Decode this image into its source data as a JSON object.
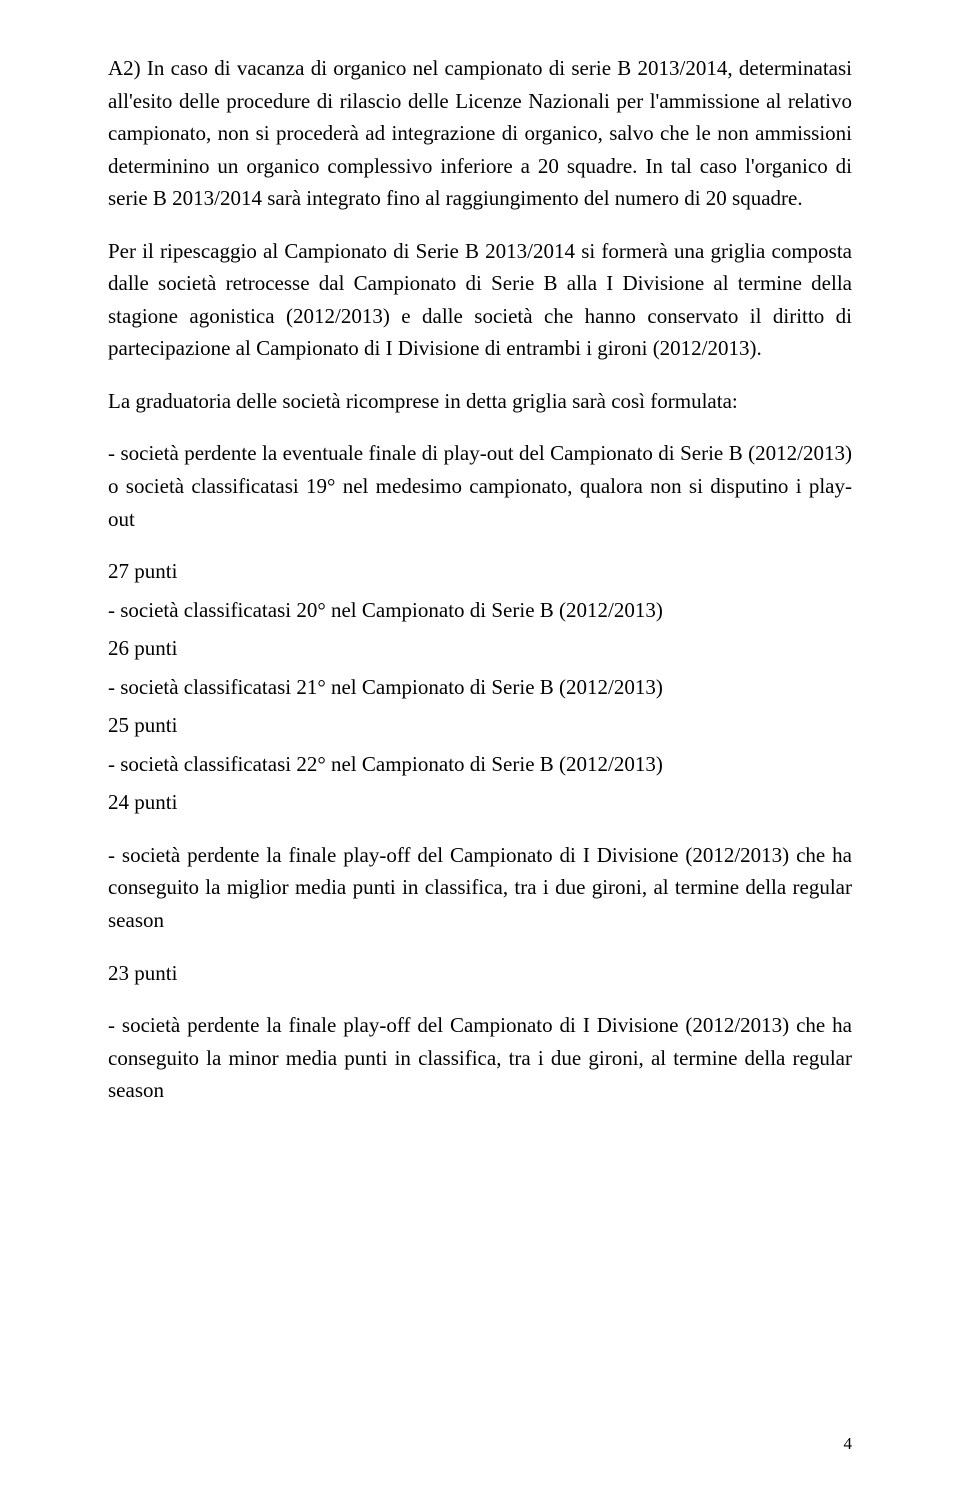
{
  "paragraphs": {
    "p1": "A2) In caso di vacanza di organico nel campionato di serie B 2013/2014, determinatasi all'esito delle procedure di rilascio delle Licenze Nazionali per l'ammissione al relativo campionato, non si procederà ad integrazione di organico, salvo che le non ammissioni determinino un organico complessivo inferiore a 20 squadre. In tal caso l'organico di serie B 2013/2014 sarà integrato fino al raggiungimento del numero di 20 squadre.",
    "p2": "Per il ripescaggio al Campionato di Serie B 2013/2014 si formerà una griglia composta dalle società retrocesse dal Campionato di Serie B alla I Divisione al termine della stagione agonistica (2012/2013) e dalle società che hanno conservato il diritto di partecipazione al Campionato di I Divisione di entrambi i gironi (2012/2013).",
    "p3": "La graduatoria delle società ricomprese in detta griglia sarà così formulata:",
    "p4": "- società perdente la eventuale finale di play-out del Campionato di Serie B (2012/2013) o società classificatasi 19° nel medesimo campionato, qualora non si disputino i play-out",
    "p5": "27 punti",
    "p6": "- società classificatasi 20° nel Campionato di Serie B (2012/2013)",
    "p7": "26 punti",
    "p8": "- società classificatasi 21° nel Campionato di Serie B (2012/2013)",
    "p9": "25 punti",
    "p10": "- società classificatasi 22° nel Campionato di Serie B (2012/2013)",
    "p11": "24 punti",
    "p12": "- società perdente la finale play-off del Campionato di I Divisione (2012/2013) che ha conseguito la miglior media punti in classifica, tra i due gironi, al termine della regular season",
    "p13": "23 punti",
    "p14": "- società perdente la finale play-off del Campionato di I Divisione (2012/2013) che ha conseguito la minor  media punti in classifica, tra i due gironi, al termine della regular season"
  },
  "pageNumber": "4"
}
